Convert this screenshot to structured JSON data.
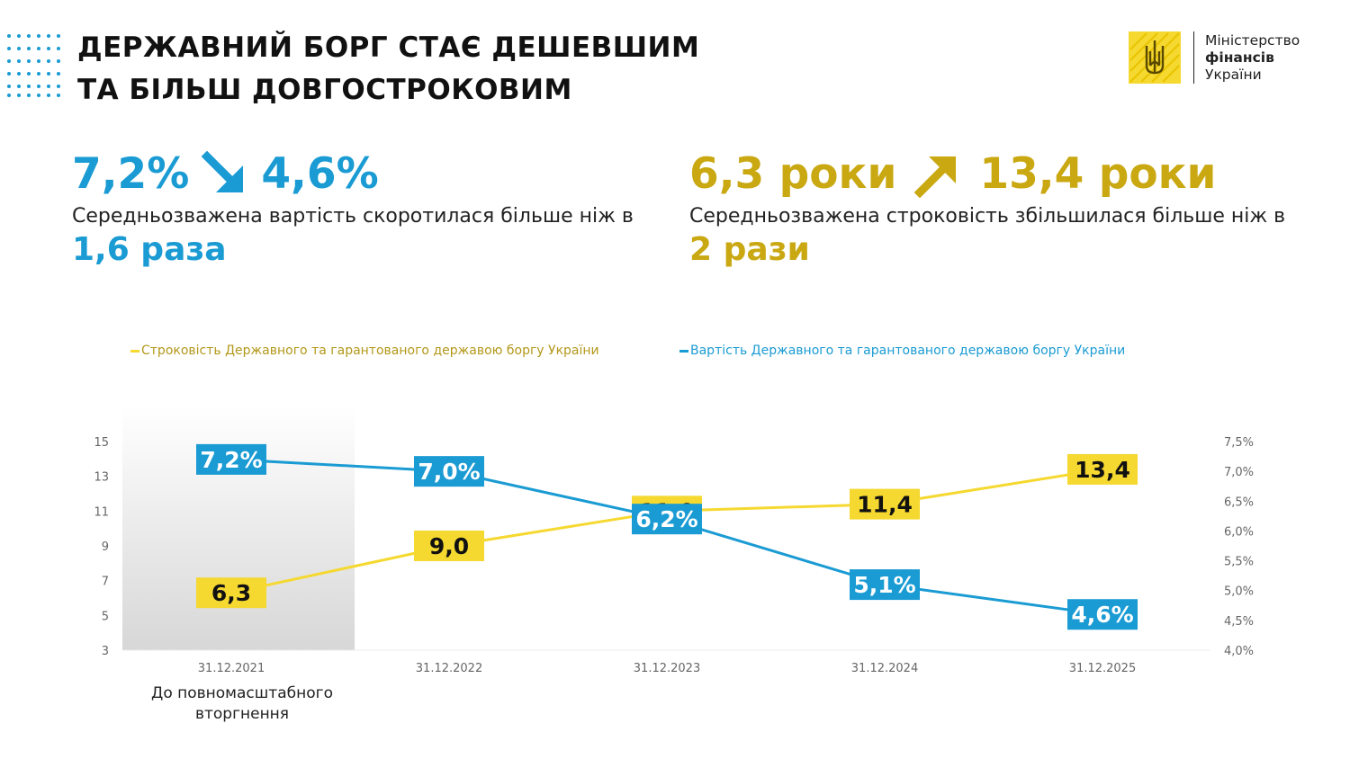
{
  "header": {
    "title_line1": "ДЕРЖАВНИЙ БОРГ СТАЄ ДЕШЕВШИМ",
    "title_line2": "ТА БІЛЬШ ДОВГОСТРОКОВИМ"
  },
  "logo": {
    "line1": "Міністерство",
    "line2": "фінансів",
    "line3": "України"
  },
  "stats": {
    "cost": {
      "from": "7,2%",
      "to": "4,6%",
      "arrow_icon": "arrow-down-right-icon",
      "description": "Середньозважена вартість скоротилася більше ніж в",
      "multiplier": "1,6 раза"
    },
    "maturity": {
      "from": "6,3 роки",
      "to": "13,4 роки",
      "arrow_icon": "arrow-up-right-icon",
      "description": "Середньозважена строковість збільшилася більше ніж в",
      "multiplier": "2 рази"
    }
  },
  "colors": {
    "blue": "#1a9bd3",
    "gold": "#f5d830",
    "gold_text": "#c9a812"
  },
  "chart_note": "До повномасштабного вторгнення",
  "chart_data": {
    "type": "line",
    "categories": [
      "31.12.2021",
      "31.12.2022",
      "31.12.2023",
      "31.12.2024",
      "31.12.2025"
    ],
    "series": [
      {
        "name": "Строковість Державного та гарантованого державою боргу України",
        "axis": "left",
        "color": "#f5d830",
        "values": [
          6.3,
          9.0,
          11.0,
          11.4,
          13.4
        ],
        "labels": [
          "6,3",
          "9,0",
          "11,0",
          "11,4",
          "13,4"
        ]
      },
      {
        "name": "Вартість Державного та гарантованого державою боргу України",
        "axis": "right",
        "color": "#1a9bd3",
        "values": [
          7.2,
          7.0,
          6.2,
          5.1,
          4.6
        ],
        "labels": [
          "7,2%",
          "7,0%",
          "6,2%",
          "5,1%",
          "4,6%"
        ]
      }
    ],
    "y_left": {
      "min": 3,
      "max": 15,
      "ticks": [
        "15",
        "13",
        "11",
        "9",
        "7",
        "5",
        "3"
      ],
      "tick_values": [
        15,
        13,
        11,
        9,
        7,
        5,
        3
      ]
    },
    "y_right": {
      "min": 4.0,
      "max": 7.5,
      "ticks": [
        "7,5%",
        "7,0%",
        "6,5%",
        "6,0%",
        "5,5%",
        "5,0%",
        "4,5%",
        "4,0%"
      ],
      "tick_values": [
        7.5,
        7.0,
        6.5,
        6.0,
        5.5,
        5.0,
        4.5,
        4.0
      ]
    },
    "highlight_category": "31.12.2021",
    "legend_position": "top",
    "grid": false
  }
}
